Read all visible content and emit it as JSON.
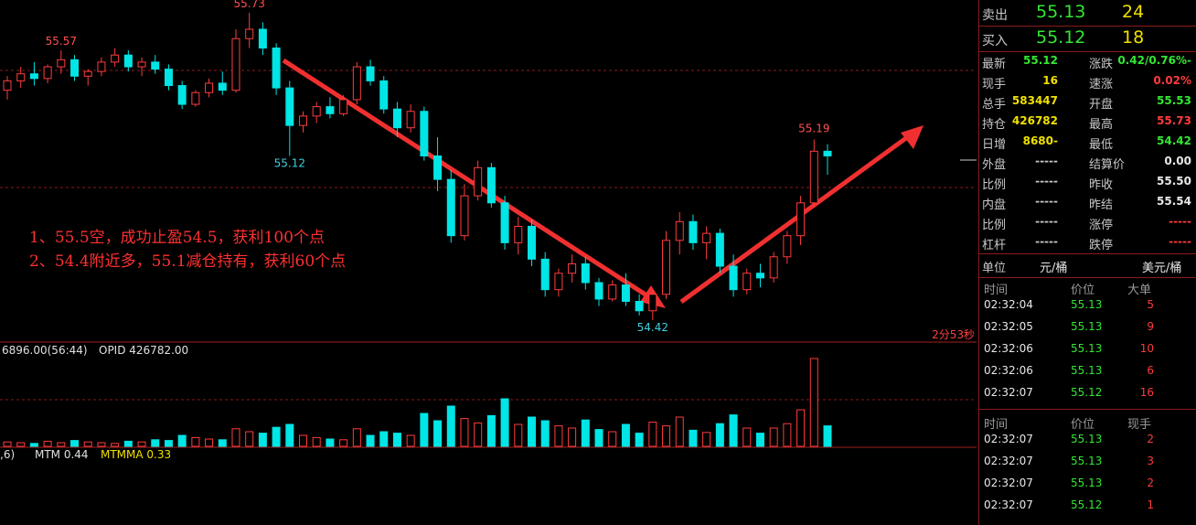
{
  "chart_data": {
    "type": "candlestick",
    "candles": [
      [
        55.4,
        55.46,
        55.36,
        55.44
      ],
      [
        55.44,
        55.5,
        55.41,
        55.47
      ],
      [
        55.47,
        55.52,
        55.42,
        55.45
      ],
      [
        55.45,
        55.51,
        55.43,
        55.5
      ],
      [
        55.5,
        55.57,
        55.47,
        55.53
      ],
      [
        55.53,
        55.55,
        55.44,
        55.46
      ],
      [
        55.46,
        55.49,
        55.42,
        55.48
      ],
      [
        55.48,
        55.54,
        55.46,
        55.52
      ],
      [
        55.52,
        55.58,
        55.5,
        55.55
      ],
      [
        55.55,
        55.57,
        55.48,
        55.5
      ],
      [
        55.5,
        55.54,
        55.46,
        55.52
      ],
      [
        55.52,
        55.55,
        55.47,
        55.49
      ],
      [
        55.49,
        55.51,
        55.4,
        55.42
      ],
      [
        55.42,
        55.44,
        55.32,
        55.34
      ],
      [
        55.34,
        55.4,
        55.33,
        55.39
      ],
      [
        55.39,
        55.45,
        55.37,
        55.43
      ],
      [
        55.43,
        55.48,
        55.38,
        55.4
      ],
      [
        55.4,
        55.66,
        55.39,
        55.62
      ],
      [
        55.62,
        55.73,
        55.58,
        55.66
      ],
      [
        55.66,
        55.69,
        55.55,
        55.58
      ],
      [
        55.58,
        55.6,
        55.38,
        55.41
      ],
      [
        55.41,
        55.44,
        55.12,
        55.25
      ],
      [
        55.25,
        55.31,
        55.22,
        55.29
      ],
      [
        55.29,
        55.35,
        55.26,
        55.33
      ],
      [
        55.33,
        55.37,
        55.28,
        55.3
      ],
      [
        55.3,
        55.38,
        55.29,
        55.36
      ],
      [
        55.36,
        55.52,
        55.34,
        55.5
      ],
      [
        55.5,
        55.53,
        55.42,
        55.44
      ],
      [
        55.44,
        55.46,
        55.3,
        55.32
      ],
      [
        55.32,
        55.35,
        55.2,
        55.24
      ],
      [
        55.24,
        55.34,
        55.22,
        55.31
      ],
      [
        55.31,
        55.33,
        55.1,
        55.12
      ],
      [
        55.12,
        55.2,
        54.97,
        55.02
      ],
      [
        55.02,
        55.06,
        54.75,
        54.78
      ],
      [
        54.78,
        55.0,
        54.76,
        54.95
      ],
      [
        54.95,
        55.1,
        54.93,
        55.07
      ],
      [
        55.07,
        55.09,
        54.9,
        54.92
      ],
      [
        54.92,
        54.95,
        54.72,
        54.75
      ],
      [
        54.75,
        54.86,
        54.7,
        54.82
      ],
      [
        54.82,
        54.85,
        54.65,
        54.68
      ],
      [
        54.68,
        54.71,
        54.52,
        54.55
      ],
      [
        54.55,
        54.64,
        54.52,
        54.62
      ],
      [
        54.62,
        54.7,
        54.58,
        54.66
      ],
      [
        54.66,
        54.69,
        54.55,
        54.58
      ],
      [
        54.58,
        54.6,
        54.48,
        54.51
      ],
      [
        54.51,
        54.59,
        54.5,
        54.57
      ],
      [
        54.57,
        54.62,
        54.48,
        54.5
      ],
      [
        54.5,
        54.53,
        54.44,
        54.46
      ],
      [
        54.46,
        54.55,
        54.42,
        54.53
      ],
      [
        54.53,
        54.8,
        54.51,
        54.76
      ],
      [
        54.76,
        54.88,
        54.7,
        54.84
      ],
      [
        54.84,
        54.87,
        54.72,
        54.75
      ],
      [
        54.75,
        54.82,
        54.68,
        54.79
      ],
      [
        54.79,
        54.81,
        54.62,
        54.65
      ],
      [
        54.65,
        54.7,
        54.52,
        54.55
      ],
      [
        54.55,
        54.64,
        54.53,
        54.62
      ],
      [
        54.62,
        54.66,
        54.56,
        54.6
      ],
      [
        54.6,
        54.71,
        54.58,
        54.69
      ],
      [
        54.69,
        54.8,
        54.66,
        54.78
      ],
      [
        54.78,
        54.95,
        54.74,
        54.92
      ],
      [
        54.92,
        55.19,
        54.9,
        55.14
      ],
      [
        55.14,
        55.17,
        55.04,
        55.12
      ]
    ],
    "ylim": [
      54.3,
      55.78
    ],
    "volumes": [
      600,
      500,
      400,
      700,
      500,
      800,
      600,
      500,
      400,
      700,
      600,
      900,
      800,
      1500,
      1200,
      1000,
      900,
      2400,
      2000,
      1800,
      2600,
      3000,
      1500,
      1200,
      1000,
      900,
      2400,
      1500,
      2000,
      1800,
      1500,
      4500,
      3500,
      5500,
      3800,
      3200,
      4200,
      6500,
      3000,
      4000,
      3500,
      2800,
      2500,
      3600,
      2300,
      2000,
      3000,
      1800,
      3300,
      2800,
      4000,
      2200,
      1900,
      3100,
      4300,
      2500,
      1800,
      2500,
      3100,
      5000,
      12000,
      2800
    ],
    "volume_lim": [
      0,
      14000
    ],
    "volume_header": [
      "6896.00(56:44)",
      "OPID 426782.00"
    ],
    "indicator_header": [
      ",6)",
      "MTM 0.44",
      "MTMMA 0.33"
    ],
    "countdown": "2分53秒",
    "annotations": [
      "1、55.5空，成功止盈54.5，获利100个点",
      "2、54.4附近多，55.1减仓持有，获利60个点"
    ]
  },
  "quote": {
    "ask": [
      "卖出",
      "55.13",
      "24"
    ],
    "bid": [
      "买入",
      "55.12",
      "18"
    ],
    "stats": [
      [
        "最新",
        "55.12",
        "涨跌",
        "-0.42/0.76%"
      ],
      [
        "现手",
        "16",
        "速涨",
        "0.02%"
      ],
      [
        "总手",
        "583447",
        "开盘",
        "55.53"
      ],
      [
        "持仓",
        "426782",
        "最高",
        "55.73"
      ],
      [
        "日增",
        "-8680",
        "最低",
        "54.42"
      ],
      [
        "外盘",
        "-----",
        "结算价",
        "0.00"
      ],
      [
        "比例",
        "-----",
        "昨收",
        "55.50"
      ],
      [
        "内盘",
        "-----",
        "昨结",
        "55.54"
      ],
      [
        "比例",
        "-----",
        "涨停",
        "-----"
      ],
      [
        "杠杆",
        "-----",
        "跌停",
        "-----"
      ]
    ],
    "unit": [
      "单位",
      "元/桶",
      "美元/桶"
    ],
    "trades_header": [
      "时间",
      "价位",
      "大单"
    ],
    "trades": [
      [
        "02:32:04",
        "55.13",
        "5"
      ],
      [
        "02:32:05",
        "55.13",
        "9"
      ],
      [
        "02:32:06",
        "55.13",
        "10"
      ],
      [
        "02:32:06",
        "55.13",
        "6"
      ],
      [
        "02:32:07",
        "55.12",
        "16"
      ]
    ],
    "ticks_header": [
      "时间",
      "价位",
      "现手"
    ],
    "ticks": [
      [
        "02:32:07",
        "55.13",
        "2"
      ],
      [
        "02:32:07",
        "55.13",
        "3"
      ],
      [
        "02:32:07",
        "55.13",
        "2"
      ],
      [
        "02:32:07",
        "55.12",
        "1"
      ]
    ]
  }
}
